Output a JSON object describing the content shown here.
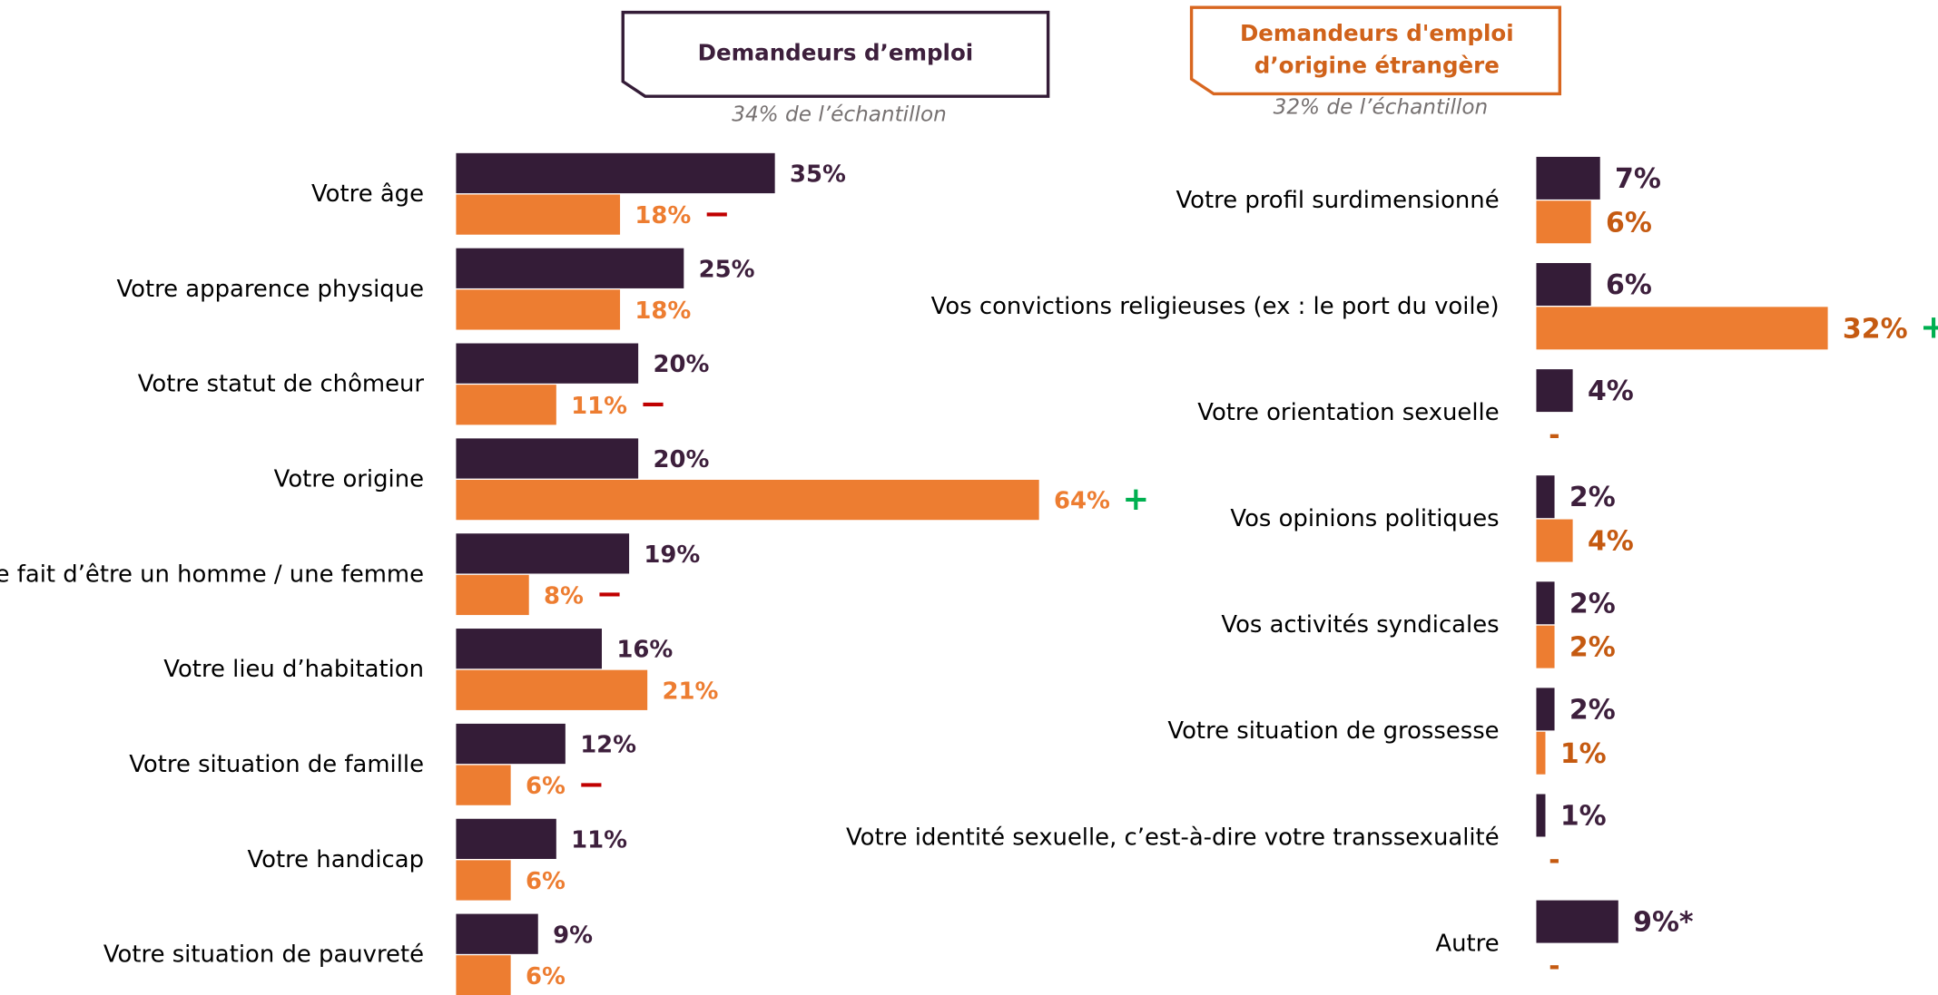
{
  "chart_data": [
    {
      "type": "bar",
      "orientation": "horizontal",
      "categories": [
        "Votre âge",
        "Votre apparence physique",
        "Votre statut de chômeur",
        "Votre origine",
        "Le fait d’être un homme / une femme",
        "Votre lieu d’habitation",
        "Votre situation de famille",
        "Votre handicap",
        "Votre situation de pauvreté"
      ],
      "series": [
        {
          "name": "Demandeurs d’emploi",
          "note": "34% de l’échantillon",
          "color": "#341c37",
          "values": [
            35,
            25,
            20,
            20,
            19,
            16,
            12,
            11,
            9
          ],
          "value_labels": [
            "35%",
            "25%",
            "20%",
            "20%",
            "19%",
            "16%",
            "12%",
            "11%",
            "9%"
          ]
        },
        {
          "name": "Demandeurs d'emploi d’origine étrangère",
          "note": "32% de l’échantillon",
          "color": "#ed7d31",
          "values": [
            18,
            18,
            11,
            64,
            8,
            21,
            6,
            6,
            6
          ],
          "value_labels": [
            "18%",
            "18%",
            "11%",
            "64%",
            "8%",
            "21%",
            "6%",
            "6%",
            "6%"
          ],
          "significance": [
            "−",
            null,
            "−",
            "+",
            "−",
            null,
            "−",
            null,
            null
          ]
        }
      ]
    },
    {
      "type": "bar",
      "orientation": "horizontal",
      "categories": [
        "Votre profil surdimensionné",
        "Vos convictions religieuses (ex : le port du voile)",
        "Votre orientation sexuelle",
        "Vos opinions politiques",
        "Vos activités syndicales",
        "Votre situation de grossesse",
        "Votre identité sexuelle, c’est-à-dire votre transsexualité",
        "Autre"
      ],
      "series": [
        {
          "color": "#341c37",
          "values": [
            7,
            6,
            4,
            2,
            2,
            2,
            1,
            9
          ],
          "value_labels": [
            "7%",
            "6%",
            "4%",
            "2%",
            "2%",
            "2%",
            "1%",
            "9%*"
          ]
        },
        {
          "color": "#ed7d31",
          "values": [
            6,
            32,
            null,
            4,
            2,
            1,
            null,
            null
          ],
          "value_labels": [
            "6%",
            "32%",
            "-",
            "4%",
            "2%",
            "1%",
            "-",
            "-"
          ],
          "significance": [
            null,
            "+",
            null,
            null,
            null,
            null,
            null,
            null
          ]
        }
      ]
    }
  ]
}
